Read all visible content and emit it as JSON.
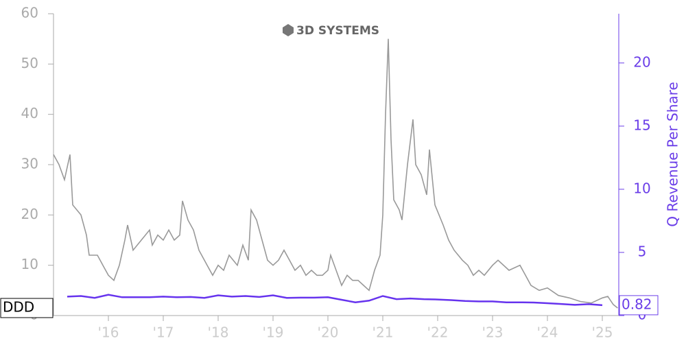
{
  "chart_data": {
    "type": "line",
    "logo_text": "3D SYSTEMS",
    "y2label": "Q Revenue Per Share",
    "xlim": [
      2015.0,
      2025.3
    ],
    "xticks": [
      {
        "value": 2016,
        "label": "'16"
      },
      {
        "value": 2017,
        "label": "'17"
      },
      {
        "value": 2018,
        "label": "'18"
      },
      {
        "value": 2019,
        "label": "'19"
      },
      {
        "value": 2020,
        "label": "'20"
      },
      {
        "value": 2021,
        "label": "'21"
      },
      {
        "value": 2022,
        "label": "'22"
      },
      {
        "value": 2023,
        "label": "'23"
      },
      {
        "value": 2024,
        "label": "'24"
      },
      {
        "value": 2025,
        "label": "'25"
      }
    ],
    "ylim": [
      0,
      60
    ],
    "yticks": [
      0,
      10,
      20,
      30,
      40,
      50,
      60
    ],
    "y2lim": [
      0,
      23.9
    ],
    "y2ticks": [
      0,
      5,
      10,
      15,
      20
    ],
    "series": [
      {
        "name": "DDD",
        "color": "#999999",
        "x": [
          2015.0,
          2015.1,
          2015.2,
          2015.3,
          2015.35,
          2015.5,
          2015.6,
          2015.65,
          2015.8,
          2015.9,
          2016.0,
          2016.1,
          2016.2,
          2016.3,
          2016.35,
          2016.45,
          2016.6,
          2016.75,
          2016.8,
          2016.9,
          2017.0,
          2017.1,
          2017.2,
          2017.3,
          2017.35,
          2017.45,
          2017.55,
          2017.65,
          2017.8,
          2017.9,
          2018.0,
          2018.1,
          2018.2,
          2018.35,
          2018.45,
          2018.55,
          2018.6,
          2018.7,
          2018.8,
          2018.9,
          2019.0,
          2019.1,
          2019.2,
          2019.3,
          2019.4,
          2019.5,
          2019.6,
          2019.7,
          2019.8,
          2019.9,
          2020.0,
          2020.05,
          2020.15,
          2020.25,
          2020.35,
          2020.45,
          2020.55,
          2020.65,
          2020.75,
          2020.85,
          2020.95,
          2021.0,
          2021.05,
          2021.1,
          2021.15,
          2021.2,
          2021.3,
          2021.35,
          2021.45,
          2021.55,
          2021.6,
          2021.7,
          2021.8,
          2021.85,
          2021.95,
          2022.1,
          2022.2,
          2022.3,
          2022.45,
          2022.55,
          2022.65,
          2022.75,
          2022.85,
          2023.0,
          2023.1,
          2023.3,
          2023.5,
          2023.6,
          2023.7,
          2023.85,
          2024.0,
          2024.2,
          2024.4,
          2024.6,
          2024.8,
          2025.0,
          2025.1,
          2025.2,
          2025.28
        ],
        "values": [
          32,
          30,
          27,
          32,
          22,
          20,
          16,
          12,
          12,
          10,
          8,
          7,
          10,
          15,
          18,
          13,
          15,
          17,
          14,
          16,
          15,
          17,
          15,
          16,
          22.8,
          19,
          17,
          13,
          10,
          8,
          10,
          9,
          12,
          10,
          14,
          11,
          21,
          19,
          15,
          11,
          10,
          11,
          13,
          11,
          9,
          10,
          8,
          9,
          8,
          8,
          9,
          12,
          9,
          6,
          8,
          7,
          7,
          6,
          5,
          9,
          12,
          20,
          40,
          55,
          35,
          23,
          21,
          19,
          30,
          39,
          30,
          28,
          24,
          33,
          22,
          18,
          15,
          13,
          11,
          10,
          8,
          9,
          8,
          10,
          11,
          9,
          10,
          8,
          6,
          5,
          5.5,
          4,
          3.5,
          2.8,
          2.5,
          3.5,
          3.8,
          2.2,
          1.5
        ]
      },
      {
        "axis": "y2",
        "color": "#6633ee",
        "x": [
          2015.25,
          2015.5,
          2015.75,
          2016.0,
          2016.25,
          2016.5,
          2016.75,
          2017.0,
          2017.25,
          2017.5,
          2017.75,
          2018.0,
          2018.25,
          2018.5,
          2018.75,
          2019.0,
          2019.25,
          2019.5,
          2019.75,
          2020.0,
          2020.25,
          2020.5,
          2020.75,
          2021.0,
          2021.25,
          2021.5,
          2021.75,
          2022.0,
          2022.25,
          2022.5,
          2022.75,
          2023.0,
          2023.25,
          2023.5,
          2023.75,
          2024.0,
          2024.25,
          2024.5,
          2024.75,
          2025.0
        ],
        "values": [
          1.5,
          1.55,
          1.4,
          1.65,
          1.45,
          1.45,
          1.45,
          1.5,
          1.45,
          1.47,
          1.4,
          1.6,
          1.5,
          1.55,
          1.47,
          1.6,
          1.4,
          1.42,
          1.42,
          1.45,
          1.25,
          1.05,
          1.18,
          1.55,
          1.3,
          1.35,
          1.3,
          1.27,
          1.22,
          1.15,
          1.12,
          1.12,
          1.05,
          1.05,
          1.03,
          0.98,
          0.92,
          0.85,
          0.9,
          0.82
        ]
      }
    ]
  }
}
